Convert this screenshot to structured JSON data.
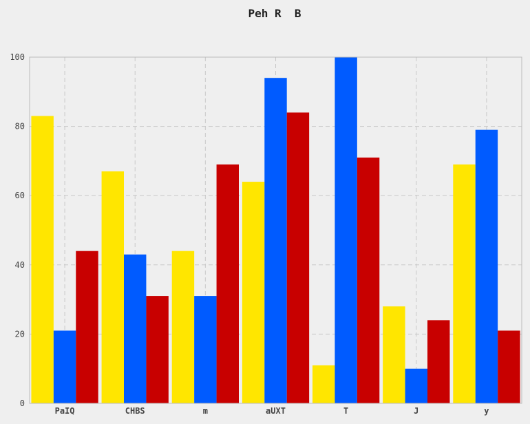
{
  "chart_data": {
    "type": "bar",
    "title": "Peh R  B",
    "xlabel": "",
    "ylabel": "",
    "categories": [
      "PaIQ",
      "CHBS",
      "m",
      "aUXT",
      "T",
      "J",
      "y"
    ],
    "series": [
      {
        "color": "#ffe600",
        "values": [
          83,
          67,
          44,
          64,
          11,
          28,
          69
        ]
      },
      {
        "color": "#005bff",
        "values": [
          21,
          43,
          31,
          94,
          100,
          10,
          79
        ]
      },
      {
        "color": "#c80000",
        "values": [
          44,
          31,
          69,
          84,
          71,
          24,
          21
        ]
      }
    ],
    "ylim": [
      0,
      100
    ],
    "yticks": [
      0,
      20,
      40,
      60,
      80,
      100
    ],
    "grid": true,
    "legend": false
  },
  "colors": {
    "background": "#efefef",
    "grid": "#c8c8c8",
    "axis": "#bbbbbb"
  }
}
